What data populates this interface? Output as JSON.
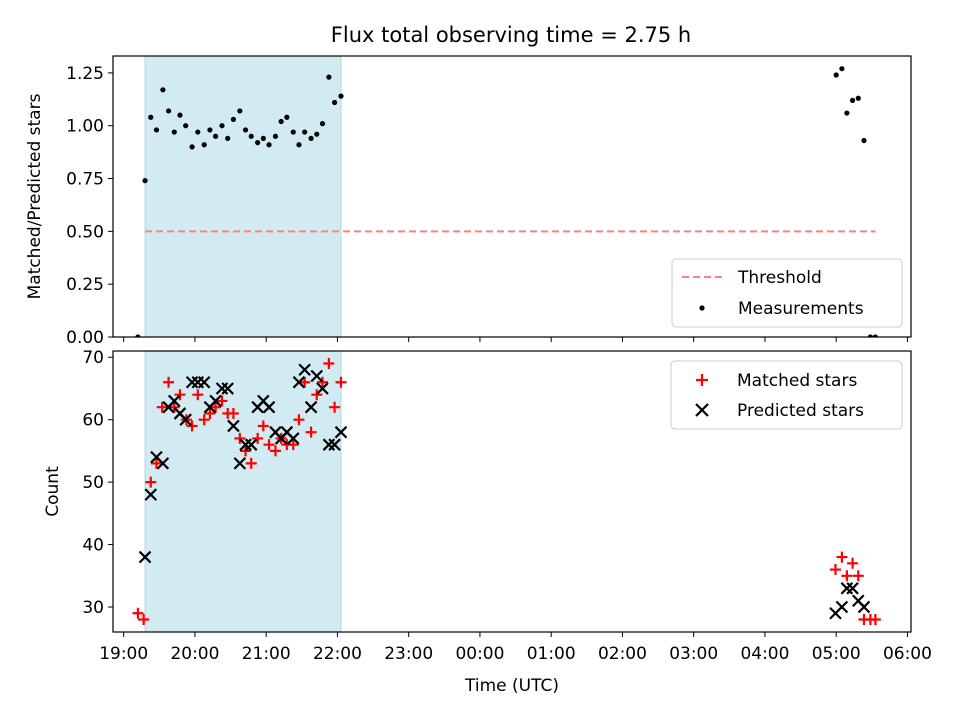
{
  "title": "Flux total observing time = 2.75 h",
  "colors": {
    "shade": "#add8e6",
    "threshold": "#ff7f7f",
    "matched": "#ff0000",
    "predicted": "#000000",
    "measurement": "#000000"
  },
  "chart_data": [
    {
      "type": "scatter",
      "panel": "top",
      "title": "Flux total observing time = 2.75 h",
      "ylabel": "Matched/Predicted stars",
      "xlabel": "",
      "xlim": [
        18.85,
        30.05
      ],
      "ylim": [
        0.0,
        1.33
      ],
      "yticks": [
        "0.00",
        "0.25",
        "0.50",
        "0.75",
        "1.00",
        "1.25"
      ],
      "shaded_span": [
        19.3,
        22.05
      ],
      "legend_position": "lower right",
      "threshold": {
        "name": "Threshold",
        "y": 0.5,
        "x_range": [
          19.3,
          29.55
        ],
        "style": "dashed"
      },
      "series": [
        {
          "name": "Measurements",
          "marker": "dot",
          "x": [
            19.2,
            19.3,
            19.38,
            19.46,
            19.55,
            19.63,
            19.71,
            19.79,
            19.87,
            19.96,
            20.04,
            20.13,
            20.21,
            20.29,
            20.38,
            20.46,
            20.54,
            20.63,
            20.71,
            20.79,
            20.88,
            20.96,
            21.04,
            21.13,
            21.21,
            21.29,
            21.38,
            21.46,
            21.54,
            21.63,
            21.71,
            21.79,
            21.88,
            21.96,
            22.05,
            29.0,
            29.08,
            29.15,
            29.23,
            29.31,
            29.39,
            29.48,
            29.55
          ],
          "y": [
            0.0,
            0.74,
            1.04,
            0.98,
            1.17,
            1.07,
            0.97,
            1.05,
            1.0,
            0.9,
            0.97,
            0.91,
            0.98,
            0.95,
            1.0,
            0.94,
            1.03,
            1.07,
            0.98,
            0.95,
            0.92,
            0.94,
            0.91,
            0.95,
            1.02,
            1.04,
            0.97,
            0.91,
            0.97,
            0.94,
            0.96,
            1.01,
            1.23,
            1.11,
            1.14,
            1.24,
            1.27,
            1.06,
            1.12,
            1.13,
            0.93,
            0.0,
            0.0
          ]
        }
      ]
    },
    {
      "type": "scatter",
      "panel": "bottom",
      "xlabel": "Time (UTC)",
      "ylabel": "Count",
      "xlim": [
        18.85,
        30.05
      ],
      "ylim": [
        26,
        71
      ],
      "yticks": [
        "30",
        "40",
        "50",
        "60",
        "70"
      ],
      "xticks": [
        "19:00",
        "20:00",
        "21:00",
        "22:00",
        "23:00",
        "00:00",
        "01:00",
        "02:00",
        "03:00",
        "04:00",
        "05:00",
        "06:00"
      ],
      "shaded_span": [
        19.3,
        22.05
      ],
      "legend_position": "upper right",
      "series": [
        {
          "name": "Matched stars",
          "marker": "plus",
          "x": [
            19.2,
            19.28,
            19.38,
            19.46,
            19.54,
            19.63,
            19.71,
            19.79,
            19.88,
            19.96,
            20.04,
            20.13,
            20.21,
            20.29,
            20.38,
            20.46,
            20.54,
            20.63,
            20.71,
            20.79,
            20.88,
            20.96,
            21.04,
            21.13,
            21.21,
            21.29,
            21.38,
            21.46,
            21.54,
            21.63,
            21.71,
            21.79,
            21.88,
            21.96,
            22.05,
            28.99,
            29.08,
            29.15,
            29.23,
            29.31,
            29.39,
            29.48,
            29.55
          ],
          "y": [
            29,
            28,
            50,
            53,
            62,
            66,
            62,
            64,
            60,
            59,
            64,
            60,
            61,
            62,
            63,
            61,
            61,
            57,
            55,
            53,
            57,
            59,
            56,
            55,
            57,
            56,
            56,
            60,
            66,
            58,
            64,
            66,
            69,
            62,
            66,
            36,
            38,
            35,
            37,
            35,
            28,
            28,
            28
          ]
        },
        {
          "name": "Predicted stars",
          "marker": "x",
          "x": [
            19.3,
            19.38,
            19.46,
            19.55,
            19.63,
            19.71,
            19.79,
            19.87,
            19.96,
            20.04,
            20.13,
            20.21,
            20.29,
            20.38,
            20.46,
            20.54,
            20.63,
            20.71,
            20.79,
            20.88,
            20.96,
            21.04,
            21.13,
            21.21,
            21.29,
            21.38,
            21.46,
            21.54,
            21.63,
            21.71,
            21.79,
            21.88,
            21.96,
            22.05,
            28.99,
            29.08,
            29.15,
            29.23,
            29.31,
            29.39
          ],
          "y": [
            38,
            48,
            54,
            53,
            62,
            63,
            61,
            60,
            66,
            66,
            66,
            62,
            63,
            65,
            65,
            59,
            53,
            56,
            56,
            62,
            63,
            62,
            58,
            57,
            58,
            57,
            66,
            68,
            62,
            67,
            65,
            56,
            56,
            58,
            29,
            30,
            33,
            33,
            31,
            30
          ]
        }
      ]
    }
  ]
}
